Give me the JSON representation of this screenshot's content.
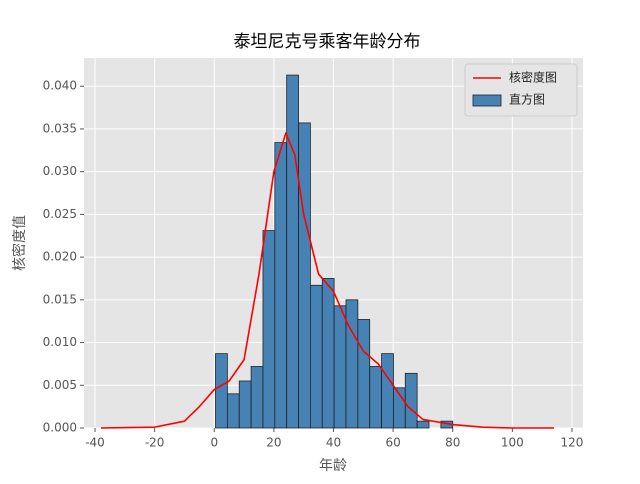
{
  "chart_data": {
    "type": "histogram",
    "title": "泰坦尼克号乘客年龄分布",
    "xlabel": "年龄",
    "ylabel": "核密度值",
    "bins": [
      0.42,
      4.4,
      8.38,
      12.36,
      16.34,
      20.32,
      24.29,
      28.27,
      32.25,
      36.23,
      40.21,
      44.19,
      48.17,
      52.15,
      56.13,
      60.11,
      64.08,
      68.06,
      72.04,
      76.02,
      80.0
    ],
    "values": [
      0.0087,
      0.004,
      0.0055,
      0.0072,
      0.0231,
      0.0334,
      0.0413,
      0.0357,
      0.0167,
      0.0175,
      0.0143,
      0.015,
      0.0127,
      0.0072,
      0.0087,
      0.0047,
      0.0064,
      0.0008,
      0,
      0.0008
    ],
    "name": "直方图",
    "color": "#4682b4",
    "edgecolor": "#222222",
    "kde": {
      "name": "核密度图",
      "color": "#ff0000",
      "x": [
        -38,
        -20,
        -10,
        -5,
        0,
        5,
        10,
        15,
        20,
        24,
        27,
        30,
        35,
        40,
        45,
        50,
        55,
        60,
        65,
        70,
        75,
        80,
        90,
        100,
        114
      ],
      "y": [
        0,
        0.0001,
        0.0008,
        0.0025,
        0.0045,
        0.0055,
        0.008,
        0.018,
        0.03,
        0.0345,
        0.032,
        0.025,
        0.018,
        0.016,
        0.012,
        0.009,
        0.0075,
        0.005,
        0.0025,
        0.001,
        0.0007,
        0.0004,
        0.0001,
        0,
        0
      ]
    },
    "xlim": [
      -43.7,
      123.7
    ],
    "ylim": [
      0,
      0.0433
    ],
    "xticks": [
      -40,
      -20,
      0,
      20,
      40,
      60,
      80,
      100,
      120
    ],
    "yticks": [
      {
        "value": 0,
        "label": "0.000"
      },
      {
        "value": 0.005,
        "label": "0.005"
      },
      {
        "value": 0.01,
        "label": "0.010"
      },
      {
        "value": 0.015,
        "label": "0.015"
      },
      {
        "value": 0.02,
        "label": "0.020"
      },
      {
        "value": 0.025,
        "label": "0.025"
      },
      {
        "value": 0.03,
        "label": "0.030"
      },
      {
        "value": 0.035,
        "label": "0.035"
      },
      {
        "value": 0.04,
        "label": "0.040"
      }
    ],
    "grid": true,
    "legend": "upper right"
  }
}
